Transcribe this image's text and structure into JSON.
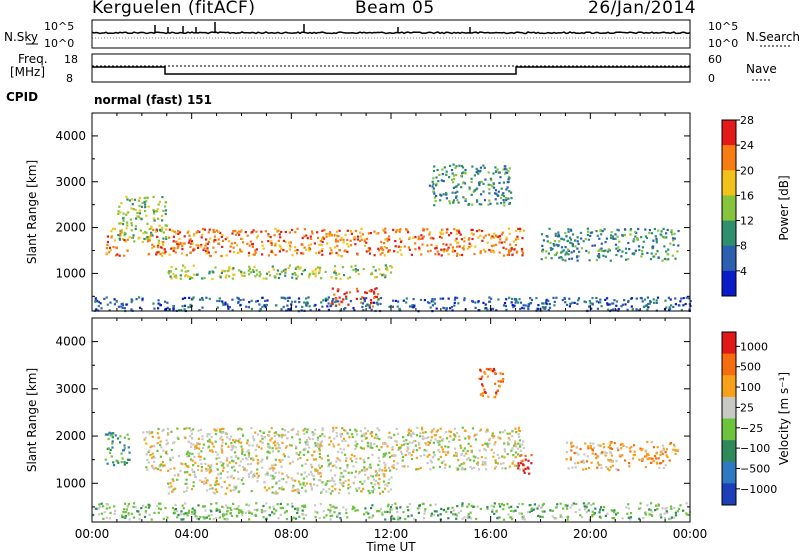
{
  "header": {
    "station": "Kerguelen (fitACF)",
    "beam": "Beam 05",
    "date": "26/Jan/2014"
  },
  "noise_panel": {
    "left_label": "N.Sky",
    "right_label": "N.Search",
    "left_ticks": [
      "10^5",
      "10^0"
    ],
    "right_ticks": [
      "10^5",
      "10^0"
    ]
  },
  "freq_panel": {
    "left_label_1": "Freq.",
    "left_label_2": "[MHz]",
    "right_label": "Nave",
    "left_ticks": [
      "18",
      "8"
    ],
    "right_ticks": [
      "60",
      "0"
    ]
  },
  "cpid": {
    "label": "CPID",
    "value": "normal (fast) 151"
  },
  "chart_data": [
    {
      "type": "heatmap",
      "quantity": "power",
      "xlabel": "",
      "ylabel": "Slant Range [km]",
      "x_range_hours": [
        0,
        24
      ],
      "ylim": [
        180,
        4500
      ],
      "yticks": [
        1000,
        2000,
        3000,
        4000
      ],
      "colorbar": {
        "label": "Power [dB]",
        "ticks": [
          4,
          8,
          12,
          16,
          20,
          24,
          28
        ],
        "colors": [
          "#0a1cc8",
          "#2b5fb0",
          "#2e8f6e",
          "#86c43c",
          "#f2c21b",
          "#f77d12",
          "#e41a1a"
        ]
      },
      "echo_regions": [
        {
          "t_start": 0.5,
          "t_end": 1.4,
          "r_low": 1400,
          "r_high": 2000,
          "level": 5
        },
        {
          "t_start": 1.0,
          "t_end": 3.0,
          "r_low": 1700,
          "r_high": 2700,
          "level": 3
        },
        {
          "t_start": 2.2,
          "t_end": 17.3,
          "r_low": 1400,
          "r_high": 2000,
          "level": 5
        },
        {
          "t_start": 3.0,
          "t_end": 12.0,
          "r_low": 900,
          "r_high": 1200,
          "level": 3
        },
        {
          "t_start": 9.5,
          "t_end": 11.5,
          "r_low": 300,
          "r_high": 700,
          "level": 6
        },
        {
          "t_start": 13.5,
          "t_end": 16.8,
          "r_low": 2500,
          "r_high": 3400,
          "level": 2
        },
        {
          "t_start": 18.0,
          "t_end": 23.5,
          "r_low": 1300,
          "r_high": 2000,
          "level": 2
        },
        {
          "t_start": 0.0,
          "t_end": 24.0,
          "r_low": 200,
          "r_high": 500,
          "level": 1
        }
      ]
    },
    {
      "type": "heatmap",
      "quantity": "velocity",
      "xlabel": "Time UT",
      "ylabel": "Slant Range [km]",
      "x_range_hours": [
        0,
        24
      ],
      "xticks": [
        "00:00",
        "04:00",
        "08:00",
        "12:00",
        "16:00",
        "20:00",
        "00:00"
      ],
      "ylim": [
        180,
        4500
      ],
      "yticks": [
        1000,
        2000,
        3000,
        4000
      ],
      "colorbar": {
        "label": "Velocity [m s⁻¹]",
        "ticks": [
          "1000",
          "500",
          "100",
          "25",
          "−25",
          "−100",
          "−500",
          "−1000"
        ],
        "colors": [
          "#1c3fb8",
          "#2f78c2",
          "#2e8a5a",
          "#6cc43c",
          "#c8c8c4",
          "#f7a11a",
          "#f56d0f",
          "#e01818"
        ]
      },
      "echo_regions": [
        {
          "t_start": 0.5,
          "t_end": 1.5,
          "r_low": 1400,
          "r_high": 2100,
          "color_index": 2
        },
        {
          "t_start": 2.0,
          "t_end": 17.3,
          "r_low": 1300,
          "r_high": 2200,
          "color_index": 4
        },
        {
          "t_start": 3.0,
          "t_end": 12.0,
          "r_low": 800,
          "r_high": 1300,
          "color_index": 4
        },
        {
          "t_start": 15.5,
          "t_end": 16.5,
          "r_low": 2800,
          "r_high": 3500,
          "color_index": 6
        },
        {
          "t_start": 17.0,
          "t_end": 17.6,
          "r_low": 1200,
          "r_high": 1700,
          "color_index": 7
        },
        {
          "t_start": 19.0,
          "t_end": 23.5,
          "r_low": 1300,
          "r_high": 1900,
          "color_index": 5
        },
        {
          "t_start": 0.0,
          "t_end": 24.0,
          "r_low": 250,
          "r_high": 600,
          "color_index": 3
        }
      ]
    }
  ]
}
